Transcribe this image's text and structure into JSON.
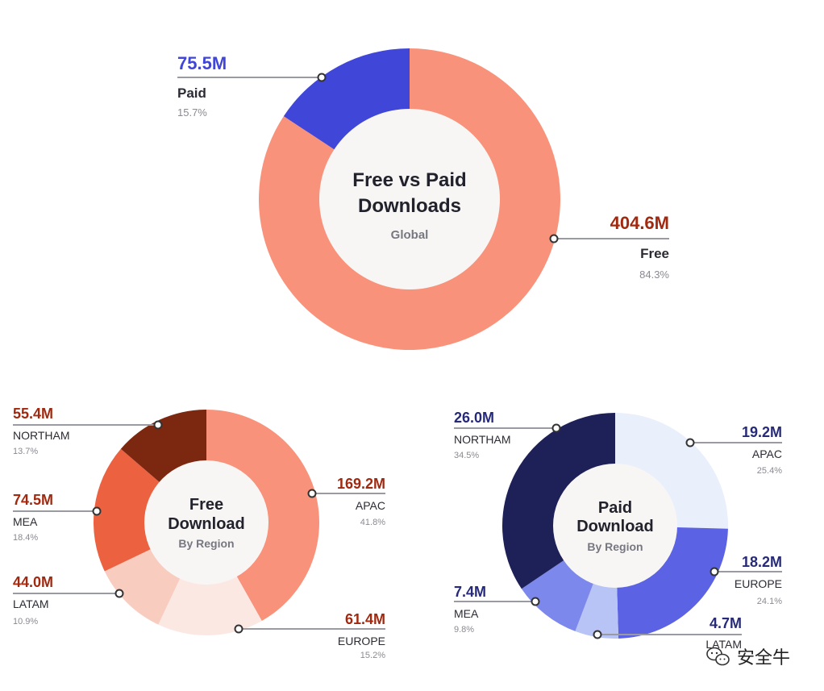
{
  "colors": {
    "free": "#f9927a",
    "paid": "#4046d8",
    "free_value_text": "#a1290f",
    "paid_value_text": "#262a79",
    "hole": "#f8f6f5"
  },
  "watermark": {
    "icon": "wechat-icon",
    "text": "安全牛"
  },
  "chart_data": [
    {
      "type": "pie",
      "title": "Free vs Paid Downloads",
      "title_lines": [
        "Free vs Paid",
        "Downloads"
      ],
      "subtitle": "Global",
      "slices": [
        {
          "label": "Free",
          "value": 404.6,
          "value_label": "404.6M",
          "percent": 84.3,
          "percent_label": "84.3%",
          "color": "#f9927a",
          "value_color": "#a1290f"
        },
        {
          "label": "Paid",
          "value": 75.5,
          "value_label": "75.5M",
          "percent": 15.7,
          "percent_label": "15.7%",
          "color": "#4046d8",
          "value_color": "#4046d8"
        }
      ]
    },
    {
      "type": "pie",
      "title": "Free Download",
      "title_lines": [
        "Free",
        "Download"
      ],
      "subtitle": "By Region",
      "slices": [
        {
          "label": "APAC",
          "value": 169.2,
          "value_label": "169.2M",
          "percent": 41.8,
          "percent_label": "41.8%",
          "color": "#f9927a",
          "value_color": "#a1290f"
        },
        {
          "label": "EUROPE",
          "value": 61.4,
          "value_label": "61.4M",
          "percent": 15.2,
          "percent_label": "15.2%",
          "color": "#fbe8e2",
          "value_color": "#a1290f"
        },
        {
          "label": "LATAM",
          "value": 44.0,
          "value_label": "44.0M",
          "percent": 10.9,
          "percent_label": "10.9%",
          "color": "#f8cdc0",
          "value_color": "#a1290f"
        },
        {
          "label": "MEA",
          "value": 74.5,
          "value_label": "74.5M",
          "percent": 18.4,
          "percent_label": "18.4%",
          "color": "#ec6140",
          "value_color": "#a1290f"
        },
        {
          "label": "NORTHAM",
          "value": 55.4,
          "value_label": "55.4M",
          "percent": 13.7,
          "percent_label": "13.7%",
          "color": "#7c2710",
          "value_color": "#a1290f"
        }
      ]
    },
    {
      "type": "pie",
      "title": "Paid Download",
      "title_lines": [
        "Paid",
        "Download"
      ],
      "subtitle": "By Region",
      "slices": [
        {
          "label": "APAC",
          "value": 19.2,
          "value_label": "19.2M",
          "percent": 25.4,
          "percent_label": "25.4%",
          "color": "#e9effb",
          "value_color": "#262a79"
        },
        {
          "label": "EUROPE",
          "value": 18.2,
          "value_label": "18.2M",
          "percent": 24.1,
          "percent_label": "24.1%",
          "color": "#5b62e3",
          "value_color": "#262a79"
        },
        {
          "label": "LATAM",
          "value": 4.7,
          "value_label": "4.7M",
          "percent": 6.2,
          "percent_label": "",
          "color": "#b8c3f6",
          "value_color": "#262a79"
        },
        {
          "label": "MEA",
          "value": 7.4,
          "value_label": "7.4M",
          "percent": 9.8,
          "percent_label": "9.8%",
          "color": "#7c88ec",
          "value_color": "#262a79"
        },
        {
          "label": "NORTHAM",
          "value": 26.0,
          "value_label": "26.0M",
          "percent": 34.5,
          "percent_label": "34.5%",
          "color": "#1e2058",
          "value_color": "#262a79"
        }
      ]
    }
  ]
}
